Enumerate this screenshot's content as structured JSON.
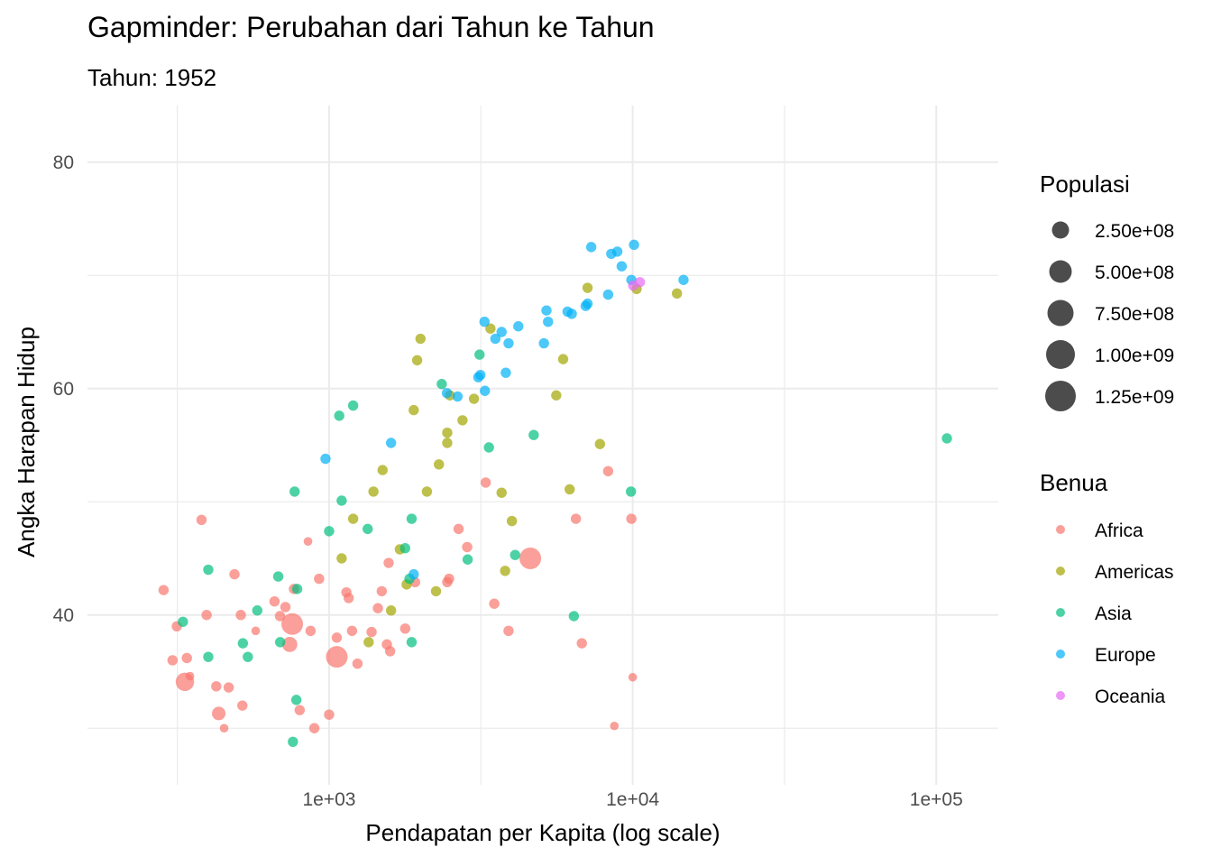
{
  "chart_data": {
    "type": "scatter",
    "title": "Gapminder: Perubahan dari Tahun ke Tahun",
    "subtitle": "Tahun: 1952",
    "xlabel": "Pendapatan per Kapita (log scale)",
    "ylabel": "Angka Harapan Hidup",
    "x_scale": "log10",
    "xlim": [
      160,
      160000
    ],
    "ylim": [
      25,
      85
    ],
    "x_ticks": [
      1000,
      10000,
      100000
    ],
    "x_tick_labels": [
      "1e+03",
      "1e+04",
      "1e+05"
    ],
    "y_ticks": [
      40,
      60,
      80
    ],
    "y_tick_labels": [
      "40",
      "60",
      "80"
    ],
    "grid": true,
    "legend_position": "right",
    "size_legend": {
      "title": "Populasi",
      "values": [
        250000000,
        500000000,
        750000000,
        1000000000,
        1250000000
      ],
      "labels": [
        "2.50e+08",
        "5.00e+08",
        "7.50e+08",
        "1.00e+09",
        "1.25e+09"
      ]
    },
    "color_legend": {
      "title": "Benua",
      "items": [
        {
          "name": "Africa",
          "color": "#F8766D"
        },
        {
          "name": "Americas",
          "color": "#A3A500"
        },
        {
          "name": "Asia",
          "color": "#00BF7D"
        },
        {
          "name": "Europe",
          "color": "#00B0F6"
        },
        {
          "name": "Oceania",
          "color": "#E76BF3"
        }
      ]
    },
    "series": [
      {
        "name": "Africa",
        "points": [
          [
            285,
            42.2,
            5
          ],
          [
            305,
            36,
            5
          ],
          [
            315,
            39,
            5
          ],
          [
            335,
            34.1,
            10
          ],
          [
            340,
            36.2,
            5
          ],
          [
            348,
            34.6,
            4
          ],
          [
            380,
            48.4,
            5
          ],
          [
            395,
            40,
            5
          ],
          [
            425,
            33.7,
            5
          ],
          [
            433,
            31.3,
            7
          ],
          [
            451,
            30,
            4
          ],
          [
            467,
            33.6,
            5
          ],
          [
            488,
            43.6,
            5
          ],
          [
            512,
            40,
            5
          ],
          [
            518,
            32,
            5
          ],
          [
            573,
            38.6,
            4
          ],
          [
            661,
            41.2,
            5
          ],
          [
            689,
            39.9,
            5
          ],
          [
            718,
            40.7,
            5
          ],
          [
            742,
            37.4,
            8
          ],
          [
            756,
            39.2,
            12
          ],
          [
            766,
            42.3,
            5
          ],
          [
            800,
            31.6,
            5
          ],
          [
            852,
            46.5,
            4
          ],
          [
            869,
            38.6,
            5
          ],
          [
            894,
            30,
            5
          ],
          [
            927,
            43.2,
            5
          ],
          [
            1000,
            31.2,
            5
          ],
          [
            1060,
            36.3,
            12
          ],
          [
            1060,
            38,
            5
          ],
          [
            1140,
            42,
            5
          ],
          [
            1160,
            41.5,
            5
          ],
          [
            1190,
            38.6,
            5
          ],
          [
            1240,
            35.7,
            5
          ],
          [
            1380,
            38.5,
            5
          ],
          [
            1448,
            40.6,
            5
          ],
          [
            1491,
            42.1,
            5
          ],
          [
            1550,
            37.4,
            5
          ],
          [
            1571,
            44.6,
            5
          ],
          [
            1589,
            36.8,
            5
          ],
          [
            1781,
            38.8,
            5
          ],
          [
            1920,
            42.9,
            5
          ],
          [
            2450,
            42.9,
            5
          ],
          [
            2484,
            43.2,
            5
          ],
          [
            2670,
            47.6,
            5
          ],
          [
            2850,
            46,
            5
          ],
          [
            3280,
            51.7,
            5
          ],
          [
            3500,
            41,
            5
          ],
          [
            3900,
            38.6,
            5
          ],
          [
            4600,
            45,
            12
          ],
          [
            6500,
            48.5,
            5
          ],
          [
            8300,
            52.7,
            5
          ],
          [
            9900,
            48.5,
            5
          ],
          [
            6800,
            37.5,
            5
          ],
          [
            10000,
            34.5,
            4
          ],
          [
            8700,
            30.2,
            4
          ]
        ]
      },
      {
        "name": "Americas",
        "points": [
          [
            1100,
            45
          ],
          [
            1200,
            48.5
          ],
          [
            1350,
            37.6
          ],
          [
            1400,
            50.9
          ],
          [
            1500,
            52.8
          ],
          [
            1600,
            40.4
          ],
          [
            1710,
            45.8
          ],
          [
            1800,
            42.7
          ],
          [
            1900,
            58.1
          ],
          [
            1950,
            62.5
          ],
          [
            2000,
            64.4
          ],
          [
            2100,
            50.9
          ],
          [
            2250,
            42.1
          ],
          [
            2300,
            53.3
          ],
          [
            2450,
            56.1
          ],
          [
            2450,
            55.2
          ],
          [
            2500,
            59.4
          ],
          [
            2750,
            57.2
          ],
          [
            3000,
            59.1
          ],
          [
            3400,
            65.3
          ],
          [
            3700,
            50.8
          ],
          [
            3800,
            43.9
          ],
          [
            4000,
            48.3
          ],
          [
            5600,
            59.4
          ],
          [
            5900,
            62.6
          ],
          [
            6200,
            51.1
          ],
          [
            7100,
            68.9
          ],
          [
            7800,
            55.1
          ],
          [
            10300,
            68.8
          ],
          [
            13990,
            68.4
          ]
        ]
      },
      {
        "name": "Asia",
        "points": [
          [
            330,
            39.4
          ],
          [
            400,
            36.3
          ],
          [
            400,
            44
          ],
          [
            520,
            37.5
          ],
          [
            540,
            36.3
          ],
          [
            580,
            40.4
          ],
          [
            680,
            43.4
          ],
          [
            690,
            37.6
          ],
          [
            760,
            28.8
          ],
          [
            770,
            50.9
          ],
          [
            780,
            32.5
          ],
          [
            785,
            42.3
          ],
          [
            1000,
            47.4
          ],
          [
            1080,
            57.6
          ],
          [
            1100,
            50.1
          ],
          [
            1200,
            58.5
          ],
          [
            1340,
            47.6
          ],
          [
            1780,
            45.9
          ],
          [
            1840,
            43.2
          ],
          [
            1870,
            48.5
          ],
          [
            1870,
            37.6
          ],
          [
            2350,
            60.4
          ],
          [
            2860,
            44.9
          ],
          [
            3130,
            63
          ],
          [
            3360,
            54.8
          ],
          [
            4100,
            45.3
          ],
          [
            4720,
            55.9
          ],
          [
            6400,
            39.9
          ],
          [
            9870,
            50.9
          ],
          [
            108382,
            55.6
          ]
        ]
      },
      {
        "name": "Europe",
        "points": [
          [
            973,
            53.8
          ],
          [
            1600,
            55.2
          ],
          [
            1900,
            43.6
          ],
          [
            2444,
            59.6
          ],
          [
            2650,
            59.3
          ],
          [
            3100,
            61
          ],
          [
            3150,
            61.2
          ],
          [
            3250,
            65.9
          ],
          [
            3260,
            59.8
          ],
          [
            3530,
            64.4
          ],
          [
            3700,
            65
          ],
          [
            3820,
            61.4
          ],
          [
            3900,
            64
          ],
          [
            4200,
            65.5
          ],
          [
            5100,
            64
          ],
          [
            5200,
            66.9
          ],
          [
            5263,
            65.9
          ],
          [
            6100,
            66.8
          ],
          [
            6300,
            66.6
          ],
          [
            7000,
            67.3
          ],
          [
            7100,
            67.5
          ],
          [
            7300,
            72.5
          ],
          [
            8300,
            68.3
          ],
          [
            8500,
            71.9
          ],
          [
            8900,
            72.1
          ],
          [
            9200,
            70.8
          ],
          [
            9900,
            69.6
          ],
          [
            10100,
            72.7
          ],
          [
            14700,
            69.6
          ]
        ]
      },
      {
        "name": "Oceania",
        "points": [
          [
            10040,
            69.1
          ],
          [
            10560,
            69.4
          ]
        ]
      }
    ],
    "point_populations_note": ""
  }
}
